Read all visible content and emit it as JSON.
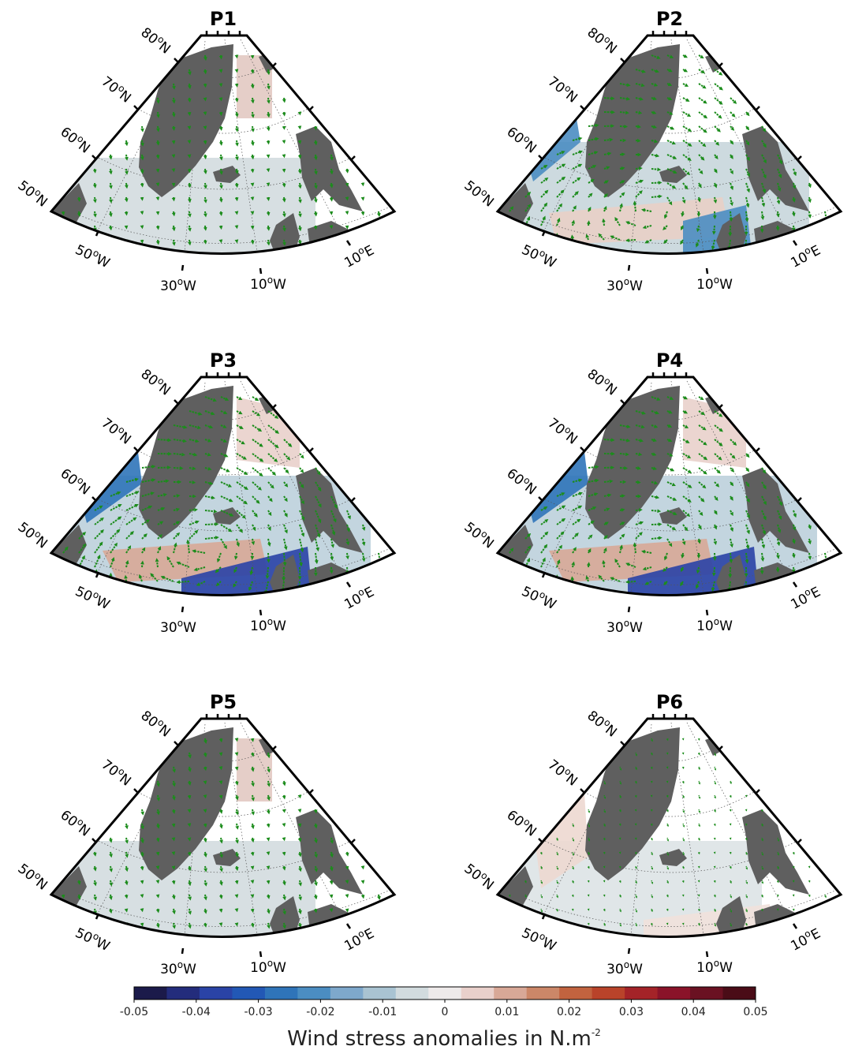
{
  "panels": [
    {
      "id": "p1",
      "title": "P1",
      "wind_pattern": "weak-northerly",
      "anomaly_strength": "weak"
    },
    {
      "id": "p2",
      "title": "P2",
      "wind_pattern": "strong-cyclonic",
      "anomaly_strength": "moderate"
    },
    {
      "id": "p3",
      "title": "P3",
      "wind_pattern": "very-strong-cyclonic",
      "anomaly_strength": "strong"
    },
    {
      "id": "p4",
      "title": "P4",
      "wind_pattern": "strong-cyclonic",
      "anomaly_strength": "strong"
    },
    {
      "id": "p5",
      "title": "P5",
      "wind_pattern": "weak-southerly",
      "anomaly_strength": "weak"
    },
    {
      "id": "p6",
      "title": "P6",
      "wind_pattern": "very-weak",
      "anomaly_strength": "very-weak"
    }
  ],
  "lat_labels": [
    {
      "deg": "80",
      "unit": "o",
      "hemi": "N"
    },
    {
      "deg": "70",
      "unit": "o",
      "hemi": "N"
    },
    {
      "deg": "60",
      "unit": "o",
      "hemi": "N"
    },
    {
      "deg": "50",
      "unit": "o",
      "hemi": "N"
    }
  ],
  "lon_labels": [
    {
      "deg": "50",
      "unit": "o",
      "hemi": "W"
    },
    {
      "deg": "30",
      "unit": "o",
      "hemi": "W"
    },
    {
      "deg": "10",
      "unit": "o",
      "hemi": "W"
    },
    {
      "deg": "10",
      "unit": "o",
      "hemi": "E"
    }
  ],
  "colorbar": {
    "ticks": [
      "-0.05",
      "-0.04",
      "-0.03",
      "-0.02",
      "-0.01",
      "0",
      "0.01",
      "0.02",
      "0.03",
      "0.04",
      "0.05"
    ],
    "colors": [
      "#1b1a4a",
      "#232c7c",
      "#2a43a6",
      "#2258b5",
      "#2f74b9",
      "#4b8dc2",
      "#7ea8cc",
      "#a9c3d2",
      "#d2dbde",
      "#eeeaea",
      "#e9d0cb",
      "#d8a897",
      "#cc8768",
      "#c2633f",
      "#b9432a",
      "#a42328",
      "#8a1329",
      "#6a1122",
      "#4a0c17"
    ],
    "title_main": "Wind stress anomalies in N.m",
    "title_exp": "-2"
  },
  "colors": {
    "land": "#5f5f5f",
    "ocean_neutral": "#d3dcdf",
    "arrow": "#1c8c1c",
    "frame": "#000000"
  }
}
